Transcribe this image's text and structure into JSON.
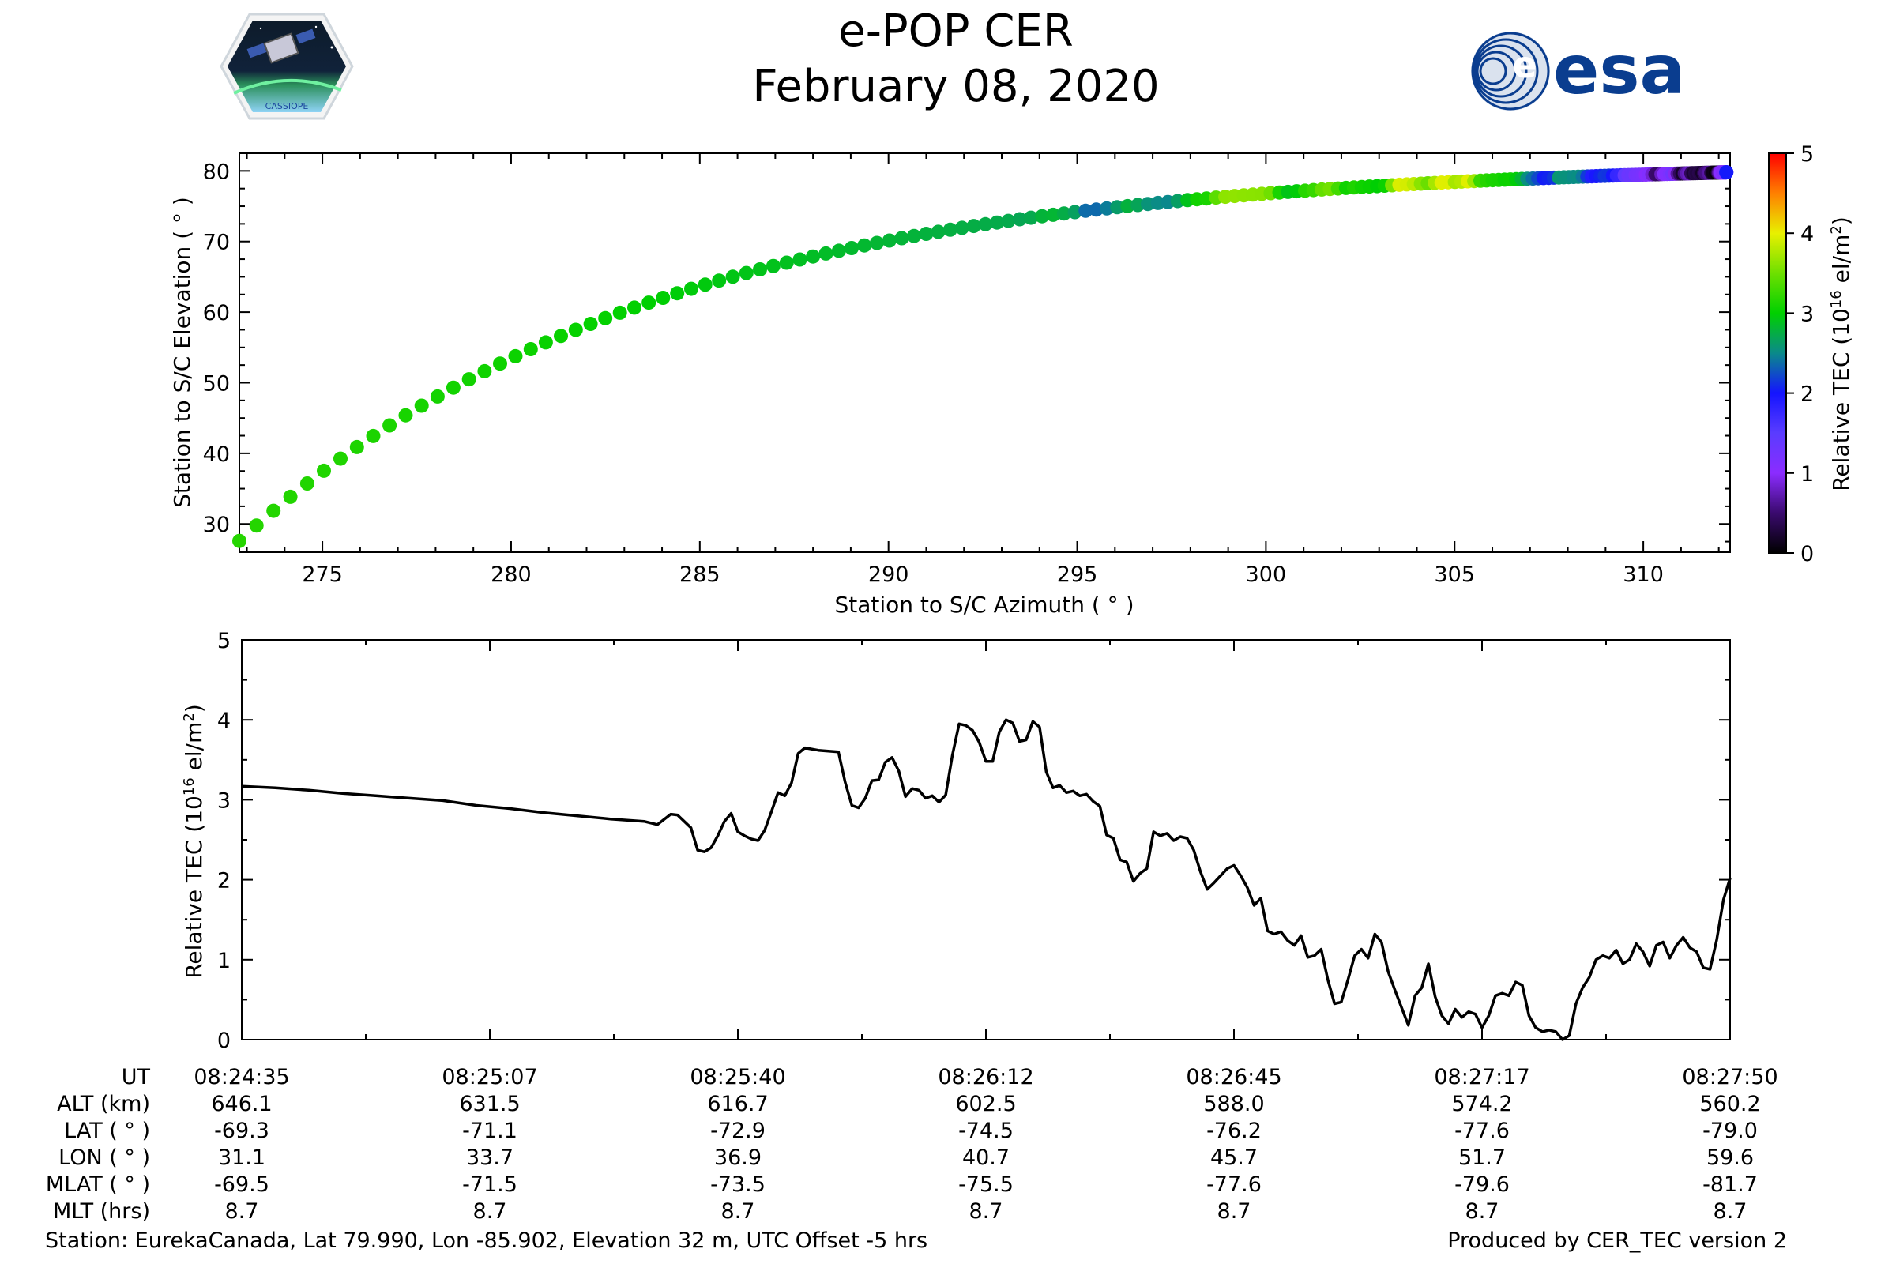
{
  "header": {
    "title_line1": "e-POP CER",
    "title_line2": "February 08, 2020",
    "left_logo_text": "CASSIOPE",
    "right_logo_text": "esa"
  },
  "chart_data": [
    {
      "type": "scatter",
      "xlabel": "Station to S/C Azimuth ( ° )",
      "ylabel": "Station to S/C Elevation ( ° )",
      "xlim": [
        272.8,
        312.3
      ],
      "ylim": [
        26,
        82.5
      ],
      "xticks": [
        275,
        280,
        285,
        290,
        295,
        300,
        305,
        310
      ],
      "yticks": [
        30,
        40,
        50,
        60,
        70,
        80
      ],
      "colorbar": {
        "label": "Relative TEC (10",
        "label_exp": "16",
        "label_tail": " el/m",
        "label_sq": "2",
        "label_close": ")",
        "range": [
          0,
          5
        ],
        "ticks": [
          0,
          1,
          2,
          3,
          4,
          5
        ]
      },
      "n_points": 200,
      "az_endpoints": [
        272.8,
        312.2
      ],
      "el_endpoints": [
        27.6,
        79.8
      ],
      "color_by": "relative TEC from lower plot"
    },
    {
      "type": "line",
      "ylabel": "Relative TEC (10",
      "ylabel_exp": "16",
      "ylabel_tail": " el/m",
      "ylabel_sq": "2",
      "ylabel_close": ")",
      "ylim": [
        0,
        5
      ],
      "yticks": [
        0,
        1,
        2,
        3,
        4,
        5
      ],
      "x_start_s": 0,
      "x_end_s": 195,
      "tec_keyframes": [
        [
          0,
          3.17
        ],
        [
          5,
          3.15
        ],
        [
          10,
          3.12
        ],
        [
          15,
          3.08
        ],
        [
          20,
          3.05
        ],
        [
          25,
          3.02
        ],
        [
          30,
          2.99
        ],
        [
          35,
          2.93
        ],
        [
          40,
          2.89
        ],
        [
          45,
          2.84
        ],
        [
          50,
          2.8
        ],
        [
          55,
          2.76
        ],
        [
          60,
          2.73
        ],
        [
          62,
          2.69
        ],
        [
          64,
          2.82
        ],
        [
          65,
          2.81
        ],
        [
          67,
          2.65
        ],
        [
          68,
          2.37
        ],
        [
          69,
          2.35
        ],
        [
          70,
          2.4
        ],
        [
          71,
          2.55
        ],
        [
          72,
          2.73
        ],
        [
          73,
          2.83
        ],
        [
          74,
          2.6
        ],
        [
          75,
          2.55
        ],
        [
          76,
          2.51
        ],
        [
          77,
          2.49
        ],
        [
          78,
          2.62
        ],
        [
          79,
          2.85
        ],
        [
          80,
          3.09
        ],
        [
          81,
          3.05
        ],
        [
          82,
          3.21
        ],
        [
          83,
          3.58
        ],
        [
          84,
          3.65
        ],
        [
          86,
          3.62
        ],
        [
          89,
          3.6
        ],
        [
          90,
          3.22
        ],
        [
          91,
          2.93
        ],
        [
          92,
          2.9
        ],
        [
          93,
          3.02
        ],
        [
          94,
          3.24
        ],
        [
          95,
          3.25
        ],
        [
          96,
          3.47
        ],
        [
          97,
          3.53
        ],
        [
          98,
          3.36
        ],
        [
          99,
          3.04
        ],
        [
          100,
          3.14
        ],
        [
          101,
          3.12
        ],
        [
          102,
          3.02
        ],
        [
          103,
          3.05
        ],
        [
          104,
          2.97
        ],
        [
          105,
          3.06
        ],
        [
          106,
          3.56
        ],
        [
          107,
          3.95
        ],
        [
          108,
          3.93
        ],
        [
          109,
          3.87
        ],
        [
          110,
          3.72
        ],
        [
          111,
          3.48
        ],
        [
          112,
          3.48
        ],
        [
          113,
          3.85
        ],
        [
          114,
          4.0
        ],
        [
          115,
          3.96
        ],
        [
          116,
          3.73
        ],
        [
          117,
          3.75
        ],
        [
          118,
          3.98
        ],
        [
          119,
          3.91
        ],
        [
          120,
          3.35
        ],
        [
          121,
          3.15
        ],
        [
          122,
          3.18
        ],
        [
          123,
          3.09
        ],
        [
          124,
          3.11
        ],
        [
          125,
          3.05
        ],
        [
          126,
          3.07
        ],
        [
          127,
          2.98
        ],
        [
          128,
          2.92
        ],
        [
          129,
          2.56
        ],
        [
          130,
          2.52
        ],
        [
          131,
          2.25
        ],
        [
          132,
          2.22
        ],
        [
          133,
          1.98
        ],
        [
          134,
          2.08
        ],
        [
          135,
          2.14
        ],
        [
          136,
          2.6
        ],
        [
          137,
          2.55
        ],
        [
          138,
          2.58
        ],
        [
          139,
          2.49
        ],
        [
          140,
          2.54
        ],
        [
          141,
          2.52
        ],
        [
          142,
          2.37
        ],
        [
          143,
          2.1
        ],
        [
          144,
          1.88
        ],
        [
          145,
          1.96
        ],
        [
          146,
          2.05
        ],
        [
          147,
          2.14
        ],
        [
          148,
          2.18
        ],
        [
          149,
          2.05
        ],
        [
          150,
          1.9
        ],
        [
          151,
          1.68
        ],
        [
          152,
          1.77
        ],
        [
          153,
          1.36
        ],
        [
          154,
          1.32
        ],
        [
          155,
          1.35
        ],
        [
          156,
          1.24
        ],
        [
          157,
          1.18
        ],
        [
          158,
          1.3
        ],
        [
          159,
          1.03
        ],
        [
          160,
          1.05
        ],
        [
          161,
          1.13
        ],
        [
          162,
          0.75
        ],
        [
          163,
          0.45
        ],
        [
          164,
          0.47
        ],
        [
          165,
          0.75
        ],
        [
          166,
          1.05
        ],
        [
          167,
          1.13
        ],
        [
          168,
          1.02
        ],
        [
          169,
          1.32
        ],
        [
          170,
          1.22
        ],
        [
          171,
          0.85
        ],
        [
          172,
          0.62
        ],
        [
          173,
          0.4
        ],
        [
          174,
          0.18
        ],
        [
          175,
          0.55
        ],
        [
          176,
          0.65
        ],
        [
          177,
          0.95
        ],
        [
          178,
          0.54
        ],
        [
          179,
          0.3
        ],
        [
          180,
          0.2
        ],
        [
          181,
          0.38
        ],
        [
          182,
          0.28
        ],
        [
          183,
          0.35
        ],
        [
          184,
          0.32
        ],
        [
          185,
          0.15
        ],
        [
          186,
          0.3
        ],
        [
          187,
          0.55
        ],
        [
          188,
          0.58
        ],
        [
          189,
          0.55
        ],
        [
          190,
          0.72
        ],
        [
          191,
          0.68
        ],
        [
          192,
          0.3
        ],
        [
          193,
          0.15
        ],
        [
          194,
          0.1
        ],
        [
          195,
          0.12
        ],
        [
          196,
          0.1
        ],
        [
          197,
          0.0
        ],
        [
          198,
          0.05
        ],
        [
          199,
          0.45
        ],
        [
          200,
          0.65
        ],
        [
          201,
          0.78
        ],
        [
          202,
          1.0
        ],
        [
          203,
          1.05
        ],
        [
          204,
          1.02
        ],
        [
          205,
          1.12
        ],
        [
          206,
          0.95
        ],
        [
          207,
          1.0
        ],
        [
          208,
          1.2
        ],
        [
          209,
          1.1
        ],
        [
          210,
          0.92
        ],
        [
          211,
          1.18
        ],
        [
          212,
          1.22
        ],
        [
          213,
          1.02
        ],
        [
          214,
          1.18
        ],
        [
          215,
          1.28
        ],
        [
          216,
          1.15
        ],
        [
          217,
          1.1
        ],
        [
          218,
          0.9
        ],
        [
          219,
          0.88
        ],
        [
          220,
          1.25
        ],
        [
          221,
          1.75
        ],
        [
          222,
          2.02
        ]
      ],
      "tec_time_scale": 0.8784
    }
  ],
  "info_table": {
    "row_labels": [
      "UT",
      "ALT (km)",
      "LAT ( ° )",
      "LON ( ° )",
      "MLAT ( ° )",
      "MLT (hrs)"
    ],
    "columns": [
      [
        "08:24:35",
        "646.1",
        "-69.3",
        "31.1",
        "-69.5",
        "8.7"
      ],
      [
        "08:25:07",
        "631.5",
        "-71.1",
        "33.7",
        "-71.5",
        "8.7"
      ],
      [
        "08:25:40",
        "616.7",
        "-72.9",
        "36.9",
        "-73.5",
        "8.7"
      ],
      [
        "08:26:12",
        "602.5",
        "-74.5",
        "40.7",
        "-75.5",
        "8.7"
      ],
      [
        "08:26:45",
        "588.0",
        "-76.2",
        "45.7",
        "-77.6",
        "8.7"
      ],
      [
        "08:27:17",
        "574.2",
        "-77.6",
        "51.7",
        "-79.6",
        "8.7"
      ],
      [
        "08:27:50",
        "560.2",
        "-79.0",
        "59.6",
        "-81.7",
        "8.7"
      ]
    ]
  },
  "footer": {
    "station": "Station: EurekaCanada, Lat 79.990, Lon -85.902, Elevation 32 m, UTC Offset -5 hrs",
    "produced": "Produced by CER_TEC version 2"
  }
}
